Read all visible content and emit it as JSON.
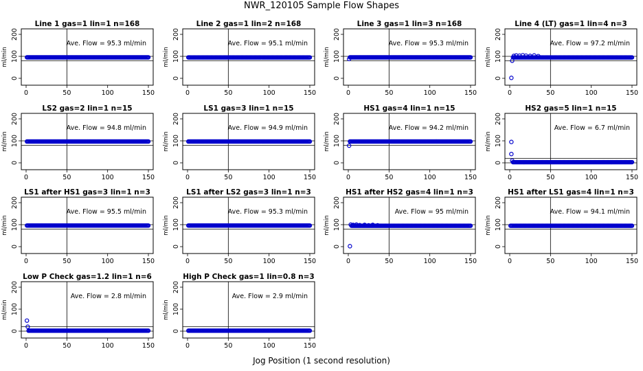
{
  "figure": {
    "title": "NWR_120105  Sample Flow Shapes",
    "xlabel": "Jog Position (1 second resolution)",
    "ylabel": "ml/min",
    "point_color": "#0000cc"
  },
  "chart_data": [
    {
      "type": "scatter",
      "title": "Line 1 gas=1 lin=1 n=168",
      "annotation": "Ave. Flow = 95.3  ml/min",
      "xlim": [
        0,
        150
      ],
      "ylim": [
        0,
        200
      ],
      "xticks": [
        0,
        50,
        100,
        150
      ],
      "yticks": [
        0,
        100,
        200
      ],
      "vline": 50,
      "hlines": [
        80,
        100
      ],
      "series": [
        {
          "x_range": [
            1,
            150
          ],
          "y": 95.3
        }
      ]
    },
    {
      "type": "scatter",
      "title": "Line 2 gas=1 lin=2 n=168",
      "annotation": "Ave. Flow = 95.1  ml/min",
      "xlim": [
        0,
        150
      ],
      "ylim": [
        0,
        200
      ],
      "xticks": [
        0,
        50,
        100,
        150
      ],
      "yticks": [
        0,
        100,
        200
      ],
      "vline": 50,
      "hlines": [
        80,
        100
      ],
      "series": [
        {
          "x_range": [
            1,
            150
          ],
          "y": 95.1
        }
      ]
    },
    {
      "type": "scatter",
      "title": "Line 3 gas=1 lin=3 n=168",
      "annotation": "Ave. Flow = 95.3  ml/min",
      "xlim": [
        0,
        150
      ],
      "ylim": [
        0,
        200
      ],
      "xticks": [
        0,
        50,
        100,
        150
      ],
      "yticks": [
        0,
        100,
        200
      ],
      "vline": 50,
      "hlines": [
        80,
        100
      ],
      "series": [
        {
          "x_range": [
            2,
            150
          ],
          "y": 95.3
        },
        {
          "points": [
            [
              1,
              88
            ]
          ]
        }
      ]
    },
    {
      "type": "scatter",
      "title": "Line 4 (LT) gas=1 lin=4 n=3",
      "annotation": "Ave. Flow = 97.2  ml/min",
      "xlim": [
        0,
        150
      ],
      "ylim": [
        0,
        200
      ],
      "xticks": [
        0,
        50,
        100,
        150
      ],
      "yticks": [
        0,
        100,
        200
      ],
      "vline": 50,
      "hlines": [
        80,
        100
      ],
      "series": [
        {
          "x_range": [
            4,
            150
          ],
          "y": 95
        },
        {
          "points": [
            [
              2,
              2
            ],
            [
              3,
              80
            ],
            [
              5,
              102
            ],
            [
              8,
              104
            ],
            [
              12,
              103
            ],
            [
              16,
              105
            ],
            [
              20,
              103
            ],
            [
              25,
              102
            ],
            [
              30,
              104
            ],
            [
              35,
              101
            ]
          ]
        }
      ]
    },
    {
      "type": "scatter",
      "title": "LS2 gas=2 lin=1 n=15",
      "annotation": "Ave. Flow = 94.8  ml/min",
      "xlim": [
        0,
        150
      ],
      "ylim": [
        0,
        200
      ],
      "xticks": [
        0,
        50,
        100,
        150
      ],
      "yticks": [
        0,
        100,
        200
      ],
      "vline": 50,
      "hlines": [
        80,
        100
      ],
      "series": [
        {
          "x_range": [
            1,
            150
          ],
          "y": 97
        }
      ]
    },
    {
      "type": "scatter",
      "title": "LS1 gas=3 lin=1 n=15",
      "annotation": "Ave. Flow = 94.9  ml/min",
      "xlim": [
        0,
        150
      ],
      "ylim": [
        0,
        200
      ],
      "xticks": [
        0,
        50,
        100,
        150
      ],
      "yticks": [
        0,
        100,
        200
      ],
      "vline": 50,
      "hlines": [
        80,
        100
      ],
      "series": [
        {
          "x_range": [
            1,
            150
          ],
          "y": 97
        }
      ]
    },
    {
      "type": "scatter",
      "title": "HS1 gas=4 lin=1 n=15",
      "annotation": "Ave. Flow = 94.2  ml/min",
      "xlim": [
        0,
        150
      ],
      "ylim": [
        0,
        200
      ],
      "xticks": [
        0,
        50,
        100,
        150
      ],
      "yticks": [
        0,
        100,
        200
      ],
      "vline": 50,
      "hlines": [
        80,
        100
      ],
      "series": [
        {
          "x_range": [
            2,
            150
          ],
          "y": 97
        },
        {
          "points": [
            [
              1,
              78
            ]
          ]
        }
      ]
    },
    {
      "type": "scatter",
      "title": "HS2 gas=5 lin=1 n=15",
      "annotation": "Ave. Flow = 6.7  ml/min",
      "xlim": [
        0,
        150
      ],
      "ylim": [
        0,
        200
      ],
      "xticks": [
        0,
        50,
        100,
        150
      ],
      "yticks": [
        0,
        100,
        200
      ],
      "vline": 50,
      "hlines": [
        0,
        20
      ],
      "series": [
        {
          "x_range": [
            4,
            150
          ],
          "y": 3
        },
        {
          "points": [
            [
              2,
              95
            ],
            [
              2,
              40
            ],
            [
              3,
              10
            ]
          ]
        }
      ]
    },
    {
      "type": "scatter",
      "title": "LS1 after HS1 gas=3 lin=1 n=3",
      "annotation": "Ave. Flow = 95.5  ml/min",
      "xlim": [
        0,
        150
      ],
      "ylim": [
        0,
        200
      ],
      "xticks": [
        0,
        50,
        100,
        150
      ],
      "yticks": [
        0,
        100,
        200
      ],
      "vline": 50,
      "hlines": [
        80,
        100
      ],
      "series": [
        {
          "x_range": [
            1,
            150
          ],
          "y": 96
        }
      ]
    },
    {
      "type": "scatter",
      "title": "LS1 after LS2 gas=3 lin=1 n=3",
      "annotation": "Ave. Flow = 95.3  ml/min",
      "xlim": [
        0,
        150
      ],
      "ylim": [
        0,
        200
      ],
      "xticks": [
        0,
        50,
        100,
        150
      ],
      "yticks": [
        0,
        100,
        200
      ],
      "vline": 50,
      "hlines": [
        80,
        100
      ],
      "series": [
        {
          "x_range": [
            1,
            150
          ],
          "y": 96
        }
      ]
    },
    {
      "type": "scatter",
      "title": "HS1 after HS2 gas=4 lin=1 n=3",
      "annotation": "Ave. Flow = 95  ml/min",
      "xlim": [
        0,
        150
      ],
      "ylim": [
        0,
        200
      ],
      "xticks": [
        0,
        50,
        100,
        150
      ],
      "yticks": [
        0,
        100,
        200
      ],
      "vline": 50,
      "hlines": [
        80,
        100
      ],
      "series": [
        {
          "x_range": [
            4,
            150
          ],
          "y": 95
        },
        {
          "points": [
            [
              2,
              2
            ],
            [
              3,
              100
            ],
            [
              6,
              99
            ],
            [
              10,
              100
            ],
            [
              14,
              98
            ],
            [
              20,
              99
            ],
            [
              25,
              97
            ],
            [
              30,
              99
            ],
            [
              36,
              97
            ]
          ]
        }
      ]
    },
    {
      "type": "scatter",
      "title": "HS1 after LS1 gas=4 lin=1 n=3",
      "annotation": "Ave. Flow = 94.1  ml/min",
      "xlim": [
        0,
        150
      ],
      "ylim": [
        0,
        200
      ],
      "xticks": [
        0,
        50,
        100,
        150
      ],
      "yticks": [
        0,
        100,
        200
      ],
      "vline": 50,
      "hlines": [
        80,
        100
      ],
      "series": [
        {
          "x_range": [
            1,
            150
          ],
          "y": 95
        }
      ]
    },
    {
      "type": "scatter",
      "title": "Low P Check gas=1.2 lin=1 n=6",
      "annotation": "Ave. Flow = 2.8  ml/min",
      "xlim": [
        0,
        150
      ],
      "ylim": [
        0,
        200
      ],
      "xticks": [
        0,
        50,
        100,
        150
      ],
      "yticks": [
        0,
        100,
        200
      ],
      "vline": 50,
      "hlines": [
        0,
        20
      ],
      "series": [
        {
          "x_range": [
            3,
            150
          ],
          "y": 2
        },
        {
          "points": [
            [
              1,
              48
            ],
            [
              2,
              20
            ]
          ]
        }
      ]
    },
    {
      "type": "scatter",
      "title": "High P Check gas=1 lin=0.8 n=3",
      "annotation": "Ave. Flow = 2.9  ml/min",
      "xlim": [
        0,
        150
      ],
      "ylim": [
        0,
        200
      ],
      "xticks": [
        0,
        50,
        100,
        150
      ],
      "yticks": [
        0,
        100,
        200
      ],
      "vline": 50,
      "hlines": [
        0,
        20
      ],
      "series": [
        {
          "x_range": [
            1,
            150
          ],
          "y": 2
        }
      ]
    }
  ]
}
